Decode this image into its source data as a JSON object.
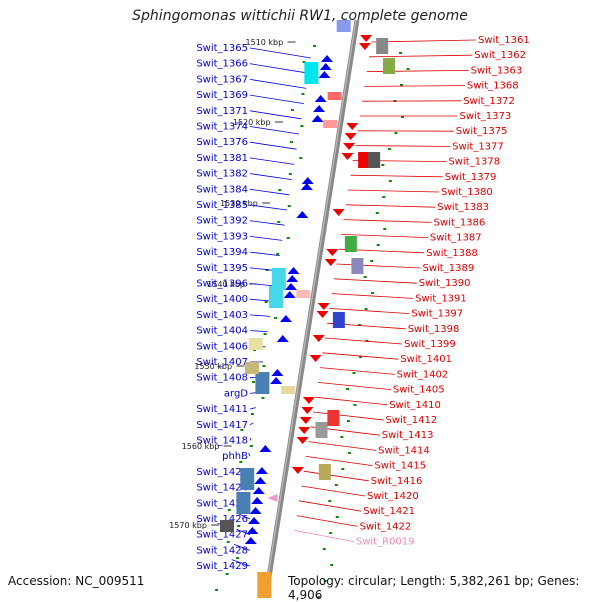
{
  "title": "Sphingomonas wittichii RW1, complete genome",
  "footer": {
    "accession": "Accession: NC_009511",
    "summary": "Topology: circular; Length: 5,382,261 bp; Genes: 4,906"
  },
  "colors": {
    "backbone": "#888888",
    "left_label": "#0000cc",
    "right_label": "#dd0000",
    "rna_label": "#ee88bb",
    "tick": "#118811"
  },
  "kbp_marks": [
    "1510 kbp",
    "1520 kbp",
    "1530 kbp",
    "1540 kbp",
    "1550 kbp",
    "1560 kbp",
    "1570 kbp"
  ],
  "left_labels": [
    "Swit_1365",
    "Swit_1366",
    "Swit_1367",
    "Swit_1369",
    "Swit_1371",
    "Swit_1374",
    "Swit_1376",
    "Swit_1381",
    "Swit_1382",
    "Swit_1384",
    "Swit_1385",
    "Swit_1392",
    "Swit_1393",
    "Swit_1394",
    "Swit_1395",
    "Swit_1396",
    "Swit_1400",
    "Swit_1403",
    "Swit_1404",
    "Swit_1406",
    "Swit_1407",
    "Swit_1408",
    "argD",
    "Swit_1411",
    "Swit_1417",
    "Swit_1418",
    "phhB",
    "Swit_1423",
    "Swit_1424",
    "Swit_1425",
    "Swit_1426",
    "Swit_1427",
    "Swit_1428",
    "Swit_1429"
  ],
  "right_labels": [
    "Swit_1361",
    "Swit_1362",
    "Swit_1363",
    "Swit_1368",
    "Swit_1372",
    "Swit_1373",
    "Swit_1375",
    "Swit_1377",
    "Swit_1378",
    "Swit_1379",
    "Swit_1380",
    "Swit_1383",
    "Swit_1386",
    "Swit_1387",
    "Swit_1388",
    "Swit_1389",
    "Swit_1390",
    "Swit_1391",
    "Swit_1397",
    "Swit_1398",
    "Swit_1399",
    "Swit_1401",
    "Swit_1402",
    "Swit_1405",
    "Swit_1410",
    "Swit_1412",
    "Swit_1413",
    "Swit_1414",
    "Swit_1415",
    "Swit_1416",
    "Swit_1420",
    "Swit_1421",
    "Swit_1422",
    "Swit_R0019"
  ]
}
